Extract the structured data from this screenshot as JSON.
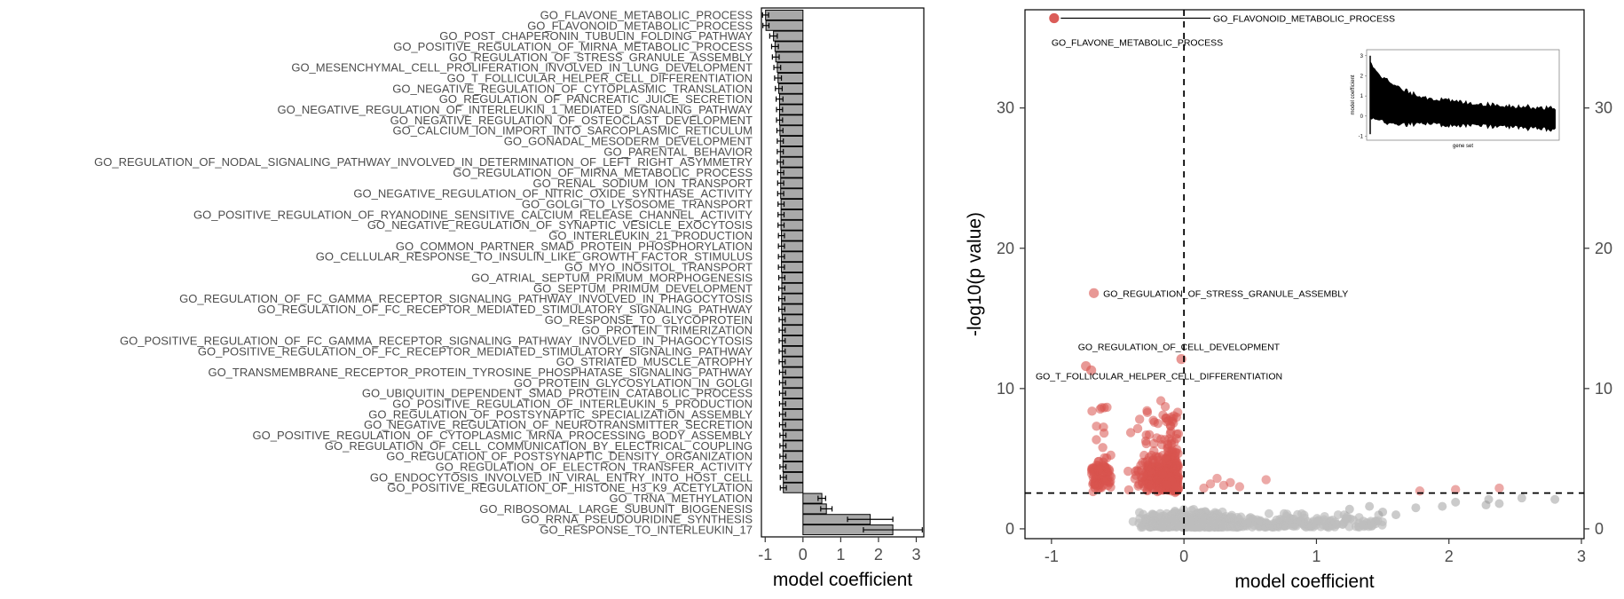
{
  "chart_data": [
    {
      "type": "bar",
      "orientation": "horizontal",
      "xlabel": "model coefficient",
      "xlim": [
        -1.1,
        3.2
      ],
      "xticks": [
        -1,
        0,
        1,
        2,
        3
      ],
      "grid": false,
      "bar_color": "#a9a9a9",
      "categories": [
        "GO_FLAVONE_METABOLIC_PROCESS",
        "GO_FLAVONOID_METABOLIC_PROCESS",
        "GO_POST_CHAPERONIN_TUBULIN_FOLDING_PATHWAY",
        "GO_POSITIVE_REGULATION_OF_MIRNA_METABOLIC_PROCESS",
        "GO_REGULATION_OF_STRESS_GRANULE_ASSEMBLY",
        "GO_MESENCHYMAL_CELL_PROLIFERATION_INVOLVED_IN_LUNG_DEVELOPMENT",
        "GO_T_FOLLICULAR_HELPER_CELL_DIFFERENTIATION",
        "GO_NEGATIVE_REGULATION_OF_CYTOPLASMIC_TRANSLATION",
        "GO_REGULATION_OF_PANCREATIC_JUICE_SECRETION",
        "GO_NEGATIVE_REGULATION_OF_INTERLEUKIN_1_MEDIATED_SIGNALING_PATHWAY",
        "GO_NEGATIVE_REGULATION_OF_OSTEOCLAST_DEVELOPMENT",
        "GO_CALCIUM_ION_IMPORT_INTO_SARCOPLASMIC_RETICULUM",
        "GO_GONADAL_MESODERM_DEVELOPMENT",
        "GO_PARENTAL_BEHAVIOR",
        "GO_REGULATION_OF_NODAL_SIGNALING_PATHWAY_INVOLVED_IN_DETERMINATION_OF_LEFT_RIGHT_ASYMMETRY",
        "GO_REGULATION_OF_MIRNA_METABOLIC_PROCESS",
        "GO_RENAL_SODIUM_ION_TRANSPORT",
        "GO_NEGATIVE_REGULATION_OF_NITRIC_OXIDE_SYNTHASE_ACTIVITY",
        "GO_GOLGI_TO_LYSOSOME_TRANSPORT",
        "GO_POSITIVE_REGULATION_OF_RYANODINE_SENSITIVE_CALCIUM_RELEASE_CHANNEL_ACTIVITY",
        "GO_NEGATIVE_REGULATION_OF_SYNAPTIC_VESICLE_EXOCYTOSIS",
        "GO_INTERLEUKIN_21_PRODUCTION",
        "GO_COMMON_PARTNER_SMAD_PROTEIN_PHOSPHORYLATION",
        "GO_CELLULAR_RESPONSE_TO_INSULIN_LIKE_GROWTH_FACTOR_STIMULUS",
        "GO_MYO_INOSITOL_TRANSPORT",
        "GO_ATRIAL_SEPTUM_PRIMUM_MORPHOGENESIS",
        "GO_SEPTUM_PRIMUM_DEVELOPMENT",
        "GO_REGULATION_OF_FC_GAMMA_RECEPTOR_SIGNALING_PATHWAY_INVOLVED_IN_PHAGOCYTOSIS",
        "GO_REGULATION_OF_FC_RECEPTOR_MEDIATED_STIMULATORY_SIGNALING_PATHWAY",
        "GO_RESPONSE_TO_GLYCOPROTEIN",
        "GO_PROTEIN_TRIMERIZATION",
        "GO_POSITIVE_REGULATION_OF_FC_GAMMA_RECEPTOR_SIGNALING_PATHWAY_INVOLVED_IN_PHAGOCYTOSIS",
        "GO_POSITIVE_REGULATION_OF_FC_RECEPTOR_MEDIATED_STIMULATORY_SIGNALING_PATHWAY",
        "GO_STRIATED_MUSCLE_ATROPHY",
        "GO_TRANSMEMBRANE_RECEPTOR_PROTEIN_TYROSINE_PHOSPHATASE_SIGNALING_PATHWAY",
        "GO_PROTEIN_GLYCOSYLATION_IN_GOLGI",
        "GO_UBIQUITIN_DEPENDENT_SMAD_PROTEIN_CATABOLIC_PROCESS",
        "GO_POSITIVE_REGULATION_OF_INTERLEUKIN_5_PRODUCTION",
        "GO_REGULATION_OF_POSTSYNAPTIC_SPECIALIZATION_ASSEMBLY",
        "GO_NEGATIVE_REGULATION_OF_NEUROTRANSMITTER_SECRETION",
        "GO_POSITIVE_REGULATION_OF_CYTOPLASMIC_MRNA_PROCESSING_BODY_ASSEMBLY",
        "GO_REGULATION_OF_CELL_COMMUNICATION_BY_ELECTRICAL_COUPLING",
        "GO_REGULATION_OF_POSTSYNAPTIC_DENSITY_ORGANIZATION",
        "GO_REGULATION_OF_ELECTRON_TRANSFER_ACTIVITY",
        "GO_ENDOCYTOSIS_INVOLVED_IN_VIRAL_ENTRY_INTO_HOST_CELL",
        "GO_POSITIVE_REGULATION_OF_HISTONE_H3_K9_ACETYLATION",
        "GO_TRNA_METHYLATION",
        "GO_RIBOSOMAL_LARGE_SUBUNIT_BIOGENESIS",
        "GO_RRNA_PSEUDOURIDINE_SYNTHESIS",
        "GO_RESPONSE_TO_INTERLEUKIN_17"
      ],
      "values": [
        -0.99,
        -0.98,
        -0.78,
        -0.74,
        -0.72,
        -0.68,
        -0.66,
        -0.64,
        -0.62,
        -0.62,
        -0.62,
        -0.61,
        -0.6,
        -0.6,
        -0.6,
        -0.59,
        -0.59,
        -0.59,
        -0.58,
        -0.58,
        -0.58,
        -0.57,
        -0.57,
        -0.57,
        -0.57,
        -0.56,
        -0.56,
        -0.56,
        -0.56,
        -0.55,
        -0.55,
        -0.55,
        -0.55,
        -0.55,
        -0.54,
        -0.54,
        -0.54,
        -0.54,
        -0.54,
        -0.54,
        -0.53,
        -0.53,
        -0.53,
        -0.53,
        -0.52,
        -0.52,
        0.5,
        0.62,
        1.78,
        2.38
      ],
      "errors": [
        0.08,
        0.08,
        0.1,
        0.09,
        0.09,
        0.09,
        0.09,
        0.09,
        0.09,
        0.08,
        0.08,
        0.08,
        0.08,
        0.08,
        0.08,
        0.08,
        0.08,
        0.08,
        0.08,
        0.08,
        0.08,
        0.08,
        0.08,
        0.08,
        0.08,
        0.08,
        0.08,
        0.08,
        0.08,
        0.08,
        0.08,
        0.08,
        0.08,
        0.08,
        0.08,
        0.08,
        0.08,
        0.08,
        0.08,
        0.08,
        0.08,
        0.08,
        0.08,
        0.08,
        0.08,
        0.08,
        0.1,
        0.15,
        0.6,
        0.78
      ]
    },
    {
      "type": "scatter",
      "xlabel": "model coefficient",
      "ylabel": "-log10(p value)",
      "xlim": [
        -1.2,
        3.02
      ],
      "ylim": [
        -0.7,
        37
      ],
      "xticks": [
        -1,
        0,
        1,
        2,
        3
      ],
      "yticks": [
        0,
        10,
        20,
        30
      ],
      "grid": false,
      "significance_threshold_y": 2.55,
      "vline_x": 0,
      "colors": {
        "significant": "#d9534f",
        "nonsignificant": "#bdbdbd",
        "nonsignificant_dark": "#8c8c8c"
      },
      "highlighted_points": [
        {
          "x": -0.98,
          "y": 36.4
        },
        {
          "x": -0.68,
          "y": 16.8
        },
        {
          "x": -0.74,
          "y": 11.6
        },
        {
          "x": -0.7,
          "y": 11.3
        },
        {
          "x": -0.02,
          "y": 12.1
        }
      ],
      "annotations": [
        {
          "text": "GO_FLAVONOID_METABOLIC_PROCESS",
          "x": 0.22,
          "y": 36.4,
          "anchor": "start"
        },
        {
          "text": "GO_FLAVONE_METABOLIC_PROCESS",
          "x": -1.0,
          "y": 34.7,
          "anchor": "start"
        },
        {
          "text": "GO_REGULATION_OF_STRESS_GRANULE_ASSEMBLY",
          "x": -0.61,
          "y": 16.8,
          "anchor": "start"
        },
        {
          "text": "GO_REGULATION_OF_CELL_DEVELOPMENT",
          "x": -0.8,
          "y": 13.0,
          "anchor": "start"
        },
        {
          "text": "GO_T_FOLLICULAR_HELPER_CELL_DIFFERENTIATION",
          "x": -1.12,
          "y": 10.9,
          "anchor": "start"
        }
      ],
      "inset": {
        "xlabel": "gene set",
        "ylabel": "model coefficient",
        "yticks": [
          -1,
          0,
          1,
          2,
          3
        ]
      }
    }
  ]
}
